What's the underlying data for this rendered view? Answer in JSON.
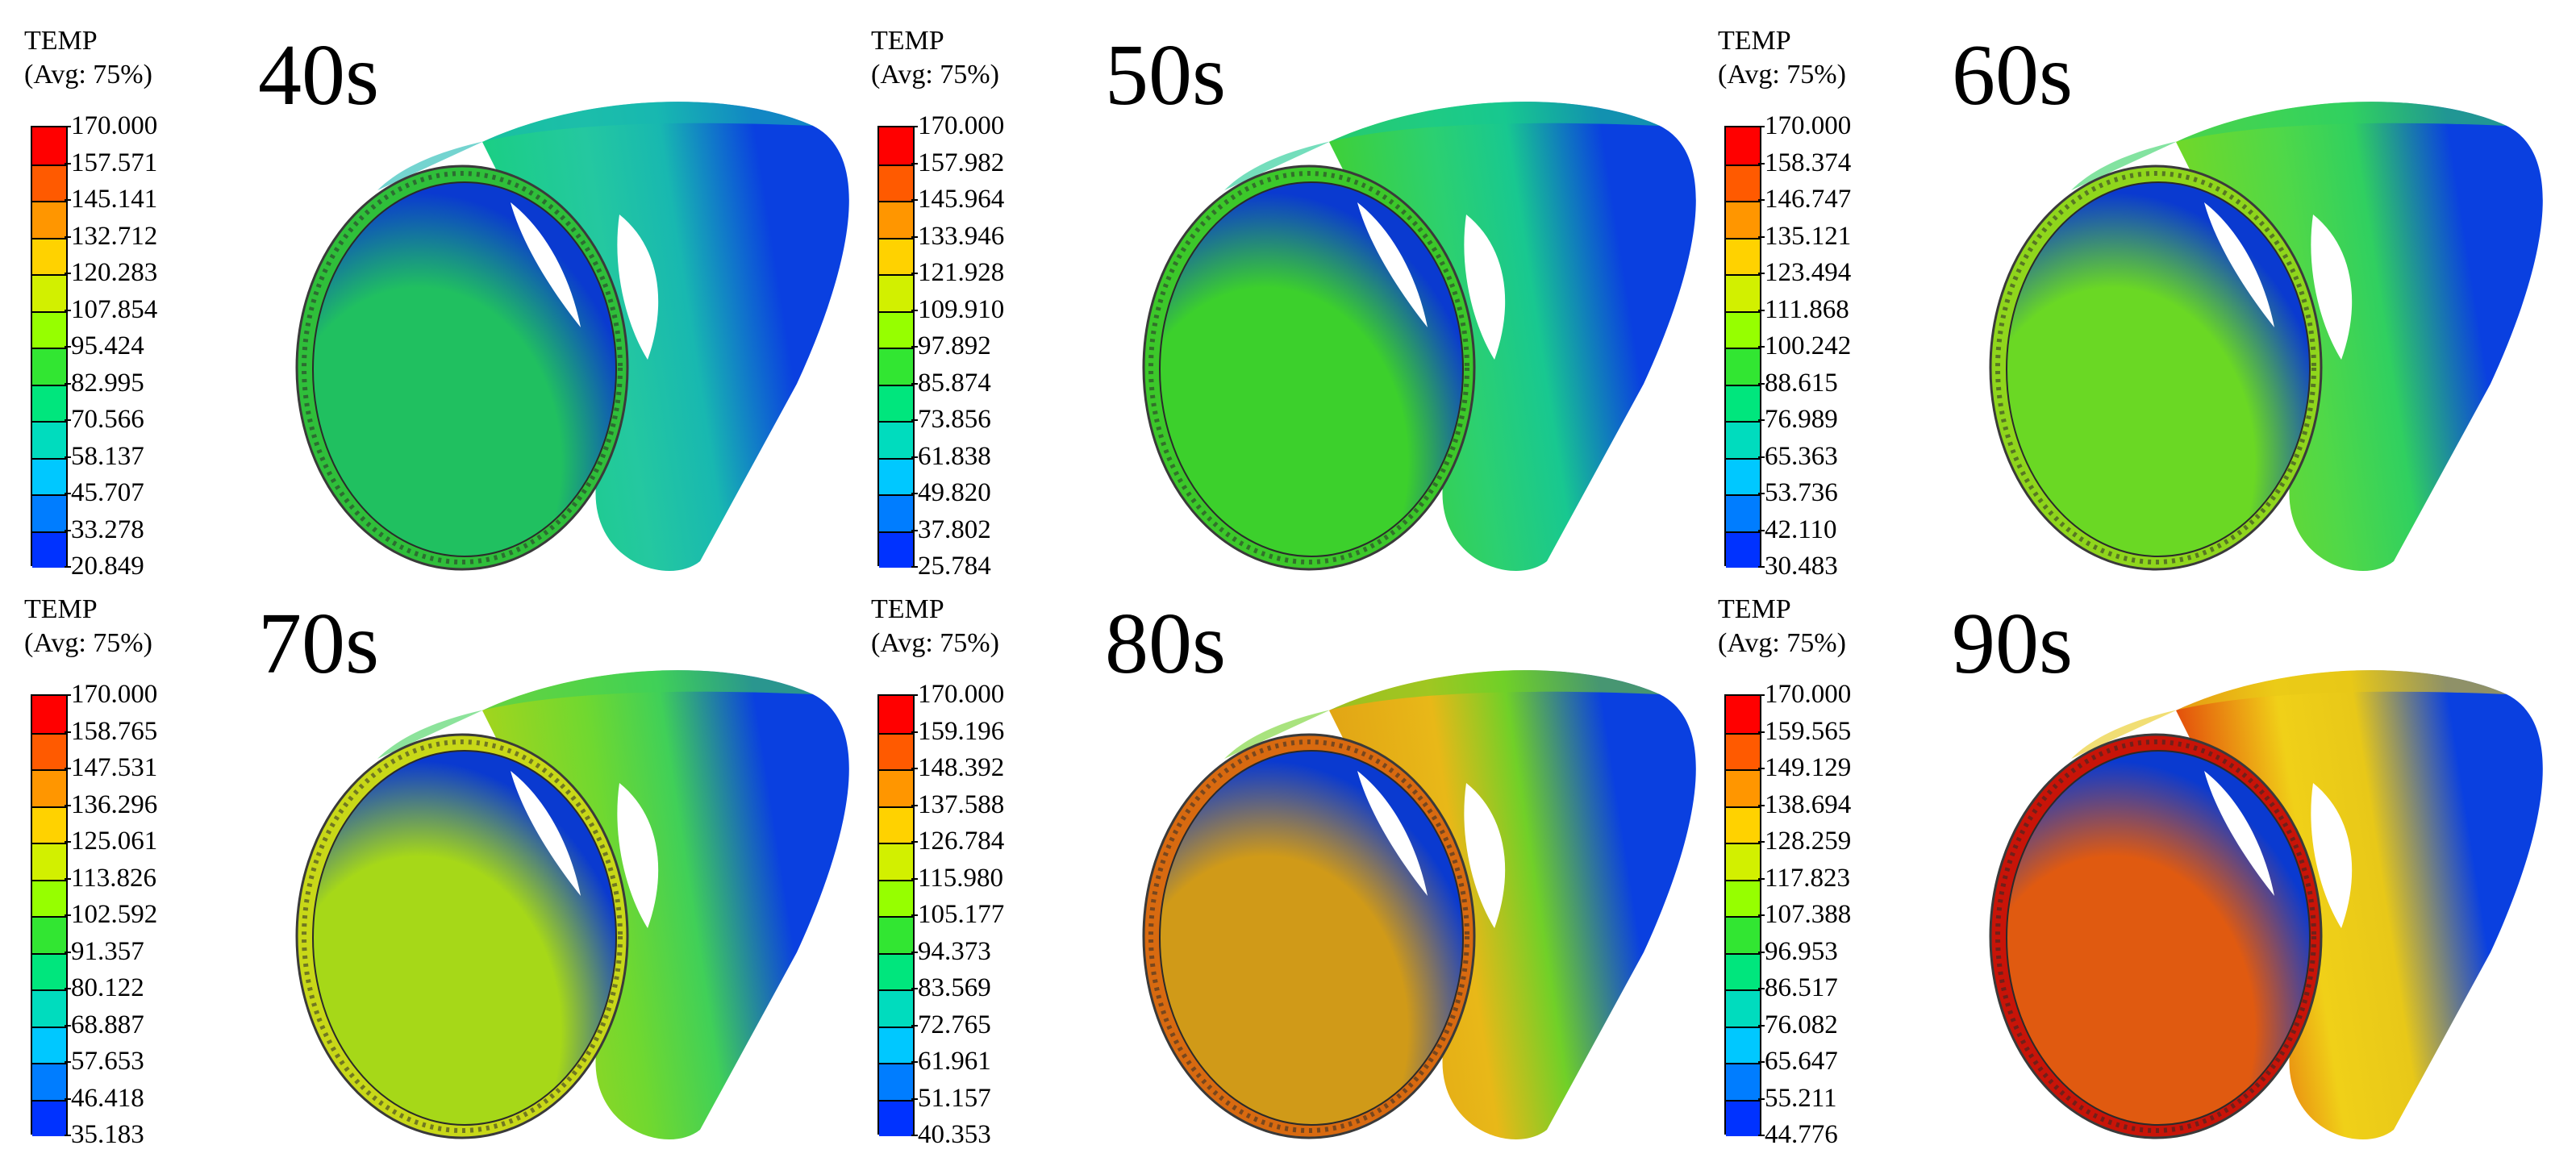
{
  "legend_title": "TEMP",
  "legend_subtitle": "(Avg: 75%)",
  "scale_colors": [
    "#ff0000",
    "#ff5a00",
    "#ff9600",
    "#ffd200",
    "#d2f000",
    "#96ff00",
    "#32e632",
    "#00e67d",
    "#00dcbe",
    "#00c8ff",
    "#007dff",
    "#0032ff"
  ],
  "panels": [
    {
      "time": "40s",
      "values": [
        "170.000",
        "157.571",
        "145.141",
        "132.712",
        "120.283",
        "107.854",
        "95.424",
        "82.995",
        "70.566",
        "58.137",
        "45.707",
        "33.278",
        "20.849"
      ],
      "tube": {
        "rim": "#2fbf3a",
        "inner_light": "#20c060",
        "inner_dark": "#0a3ad0",
        "outer_front": "#18d07c",
        "outer_mid": "#18b8b0",
        "outer_back": "#0a40e0",
        "band": "#24c8a0"
      }
    },
    {
      "time": "50s",
      "values": [
        "170.000",
        "157.982",
        "145.964",
        "133.946",
        "121.928",
        "109.910",
        "97.892",
        "85.874",
        "73.856",
        "61.838",
        "49.820",
        "37.802",
        "25.784"
      ],
      "tube": {
        "rim": "#3cc82a",
        "inner_light": "#3cd02c",
        "inner_dark": "#0a3ad0",
        "outer_front": "#44d028",
        "outer_mid": "#18c890",
        "outer_back": "#0a40e0",
        "band": "#2cd070"
      }
    },
    {
      "time": "60s",
      "values": [
        "170.000",
        "158.374",
        "146.747",
        "135.121",
        "123.494",
        "111.868",
        "100.242",
        "88.615",
        "76.989",
        "65.363",
        "53.736",
        "42.110",
        "30.483"
      ],
      "tube": {
        "rim": "#8fd61c",
        "inner_light": "#6ad824",
        "inner_dark": "#0a3ad0",
        "outer_front": "#7ad820",
        "outer_mid": "#30d060",
        "outer_back": "#0a40e0",
        "band": "#50d848"
      }
    },
    {
      "time": "70s",
      "values": [
        "170.000",
        "158.765",
        "147.531",
        "136.296",
        "125.061",
        "113.826",
        "102.592",
        "91.357",
        "80.122",
        "68.887",
        "57.653",
        "46.418",
        "35.183"
      ],
      "tube": {
        "rim": "#c8d818",
        "inner_light": "#a6d818",
        "inner_dark": "#0a3ad0",
        "outer_front": "#b0d418",
        "outer_mid": "#40d058",
        "outer_back": "#0a40e0",
        "band": "#70d830"
      }
    },
    {
      "time": "80s",
      "values": [
        "170.000",
        "159.196",
        "148.392",
        "137.588",
        "126.784",
        "115.980",
        "105.177",
        "94.373",
        "83.569",
        "72.765",
        "61.961",
        "51.157",
        "40.353"
      ],
      "tube": {
        "rim": "#d86a10",
        "inner_light": "#d09a18",
        "inner_dark": "#0a3ad0",
        "outer_front": "#e0a014",
        "outer_mid": "#70d028",
        "outer_back": "#0a40e0",
        "band": "#e8b818"
      }
    },
    {
      "time": "90s",
      "values": [
        "170.000",
        "159.565",
        "149.129",
        "138.694",
        "128.259",
        "117.823",
        "107.388",
        "96.953",
        "86.517",
        "76.082",
        "65.647",
        "55.211",
        "44.776"
      ],
      "tube": {
        "rim": "#c81408",
        "inner_light": "#e05a10",
        "inner_dark": "#0a3ad0",
        "outer_front": "#e02a08",
        "outer_mid": "#e8c818",
        "outer_back": "#0a40e0",
        "band": "#f0d018"
      }
    }
  ]
}
